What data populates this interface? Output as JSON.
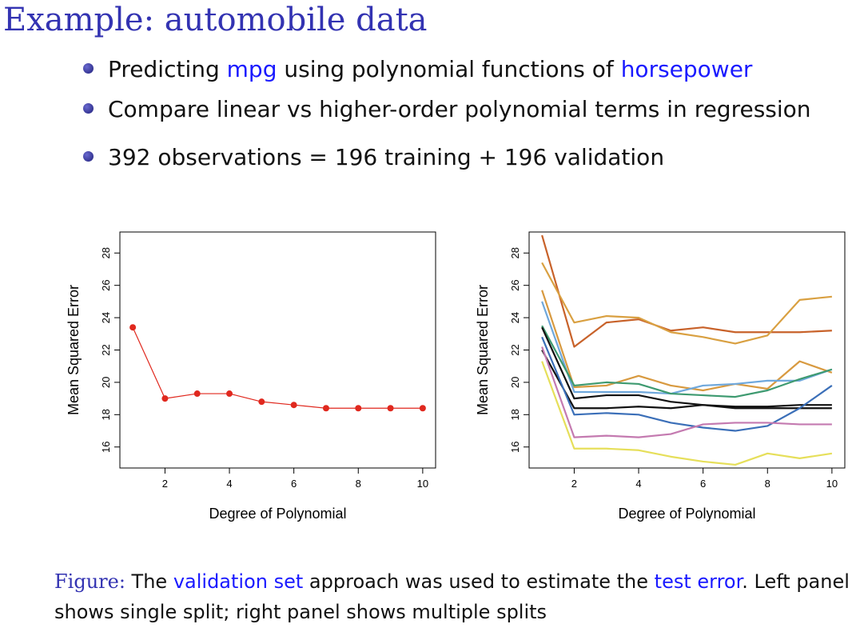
{
  "slide": {
    "title": "Example: automobile data",
    "bullets": [
      {
        "parts": [
          {
            "text": "Predicting ",
            "hl": false
          },
          {
            "text": "mpg",
            "hl": true
          },
          {
            "text": " using polynomial functions of ",
            "hl": false
          },
          {
            "text": "horsepower",
            "hl": true
          }
        ]
      },
      {
        "parts": [
          {
            "text": "Compare linear vs higher-order polynomial terms in regression",
            "hl": false
          }
        ]
      },
      {
        "parts": [
          {
            "text": "392 observations = 196 training + 196 validation",
            "hl": false
          }
        ]
      }
    ],
    "caption": {
      "label": "Figure:",
      "text1": " The ",
      "link1": "validation set",
      "text2": " approach was used to estimate the ",
      "link2": "test error",
      "text3": ". Left panel shows single split; right panel shows multiple splits"
    }
  },
  "chart_data": [
    {
      "type": "line",
      "xlabel": "Degree of Polynomial",
      "ylabel": "Mean Squared Error",
      "xlim": [
        0.6,
        10.4
      ],
      "ylim": [
        14.7,
        29.3
      ],
      "xticks": [
        2,
        4,
        6,
        8,
        10
      ],
      "yticks": [
        16,
        18,
        20,
        22,
        24,
        26,
        28
      ],
      "x": [
        1,
        2,
        3,
        4,
        5,
        6,
        7,
        8,
        9,
        10
      ],
      "series": [
        {
          "color": "#e0281e",
          "markers": true,
          "values": [
            23.4,
            19.0,
            19.3,
            19.3,
            18.8,
            18.6,
            18.4,
            18.4,
            18.4,
            18.4
          ]
        }
      ]
    },
    {
      "type": "line",
      "xlabel": "Degree of Polynomial",
      "ylabel": "Mean Squared Error",
      "xlim": [
        0.6,
        10.4
      ],
      "ylim": [
        14.7,
        29.3
      ],
      "xticks": [
        2,
        4,
        6,
        8,
        10
      ],
      "yticks": [
        16,
        18,
        20,
        22,
        24,
        26,
        28
      ],
      "x": [
        1,
        2,
        3,
        4,
        5,
        6,
        7,
        8,
        9,
        10
      ],
      "series": [
        {
          "color": "#c8622a",
          "values": [
            29.1,
            22.2,
            23.7,
            23.9,
            23.2,
            23.4,
            23.1,
            23.1,
            23.1,
            23.2
          ]
        },
        {
          "color": "#d9a041",
          "values": [
            27.4,
            23.7,
            24.1,
            24.0,
            23.1,
            22.8,
            22.4,
            22.9,
            25.1,
            25.3
          ]
        },
        {
          "color": "#d89a40",
          "values": [
            25.7,
            19.7,
            19.8,
            20.4,
            19.8,
            19.5,
            19.9,
            19.6,
            21.3,
            20.6
          ]
        },
        {
          "color": "#6fa8dc",
          "values": [
            25.0,
            19.4,
            19.4,
            19.4,
            19.3,
            19.8,
            19.9,
            20.1,
            20.1,
            20.8
          ]
        },
        {
          "color": "#3e9a70",
          "values": [
            23.5,
            19.8,
            20.0,
            19.9,
            19.3,
            19.2,
            19.1,
            19.5,
            20.2,
            20.8
          ]
        },
        {
          "color": "#111111",
          "values": [
            23.4,
            19.0,
            19.2,
            19.2,
            18.8,
            18.6,
            18.5,
            18.5,
            18.6,
            18.6
          ]
        },
        {
          "color": "#111111",
          "values": [
            22.0,
            18.4,
            18.4,
            18.5,
            18.4,
            18.6,
            18.4,
            18.4,
            18.4,
            18.4
          ]
        },
        {
          "color": "#3b6fb8",
          "values": [
            22.8,
            18.0,
            18.1,
            18.0,
            17.5,
            17.2,
            17.0,
            17.3,
            18.4,
            19.8
          ]
        },
        {
          "color": "#c47ab0",
          "values": [
            22.2,
            16.6,
            16.7,
            16.6,
            16.8,
            17.4,
            17.5,
            17.5,
            17.4,
            17.4
          ]
        },
        {
          "color": "#e6df5a",
          "values": [
            21.3,
            15.9,
            15.9,
            15.8,
            15.4,
            15.1,
            14.9,
            15.6,
            15.3,
            15.6
          ]
        }
      ]
    }
  ]
}
